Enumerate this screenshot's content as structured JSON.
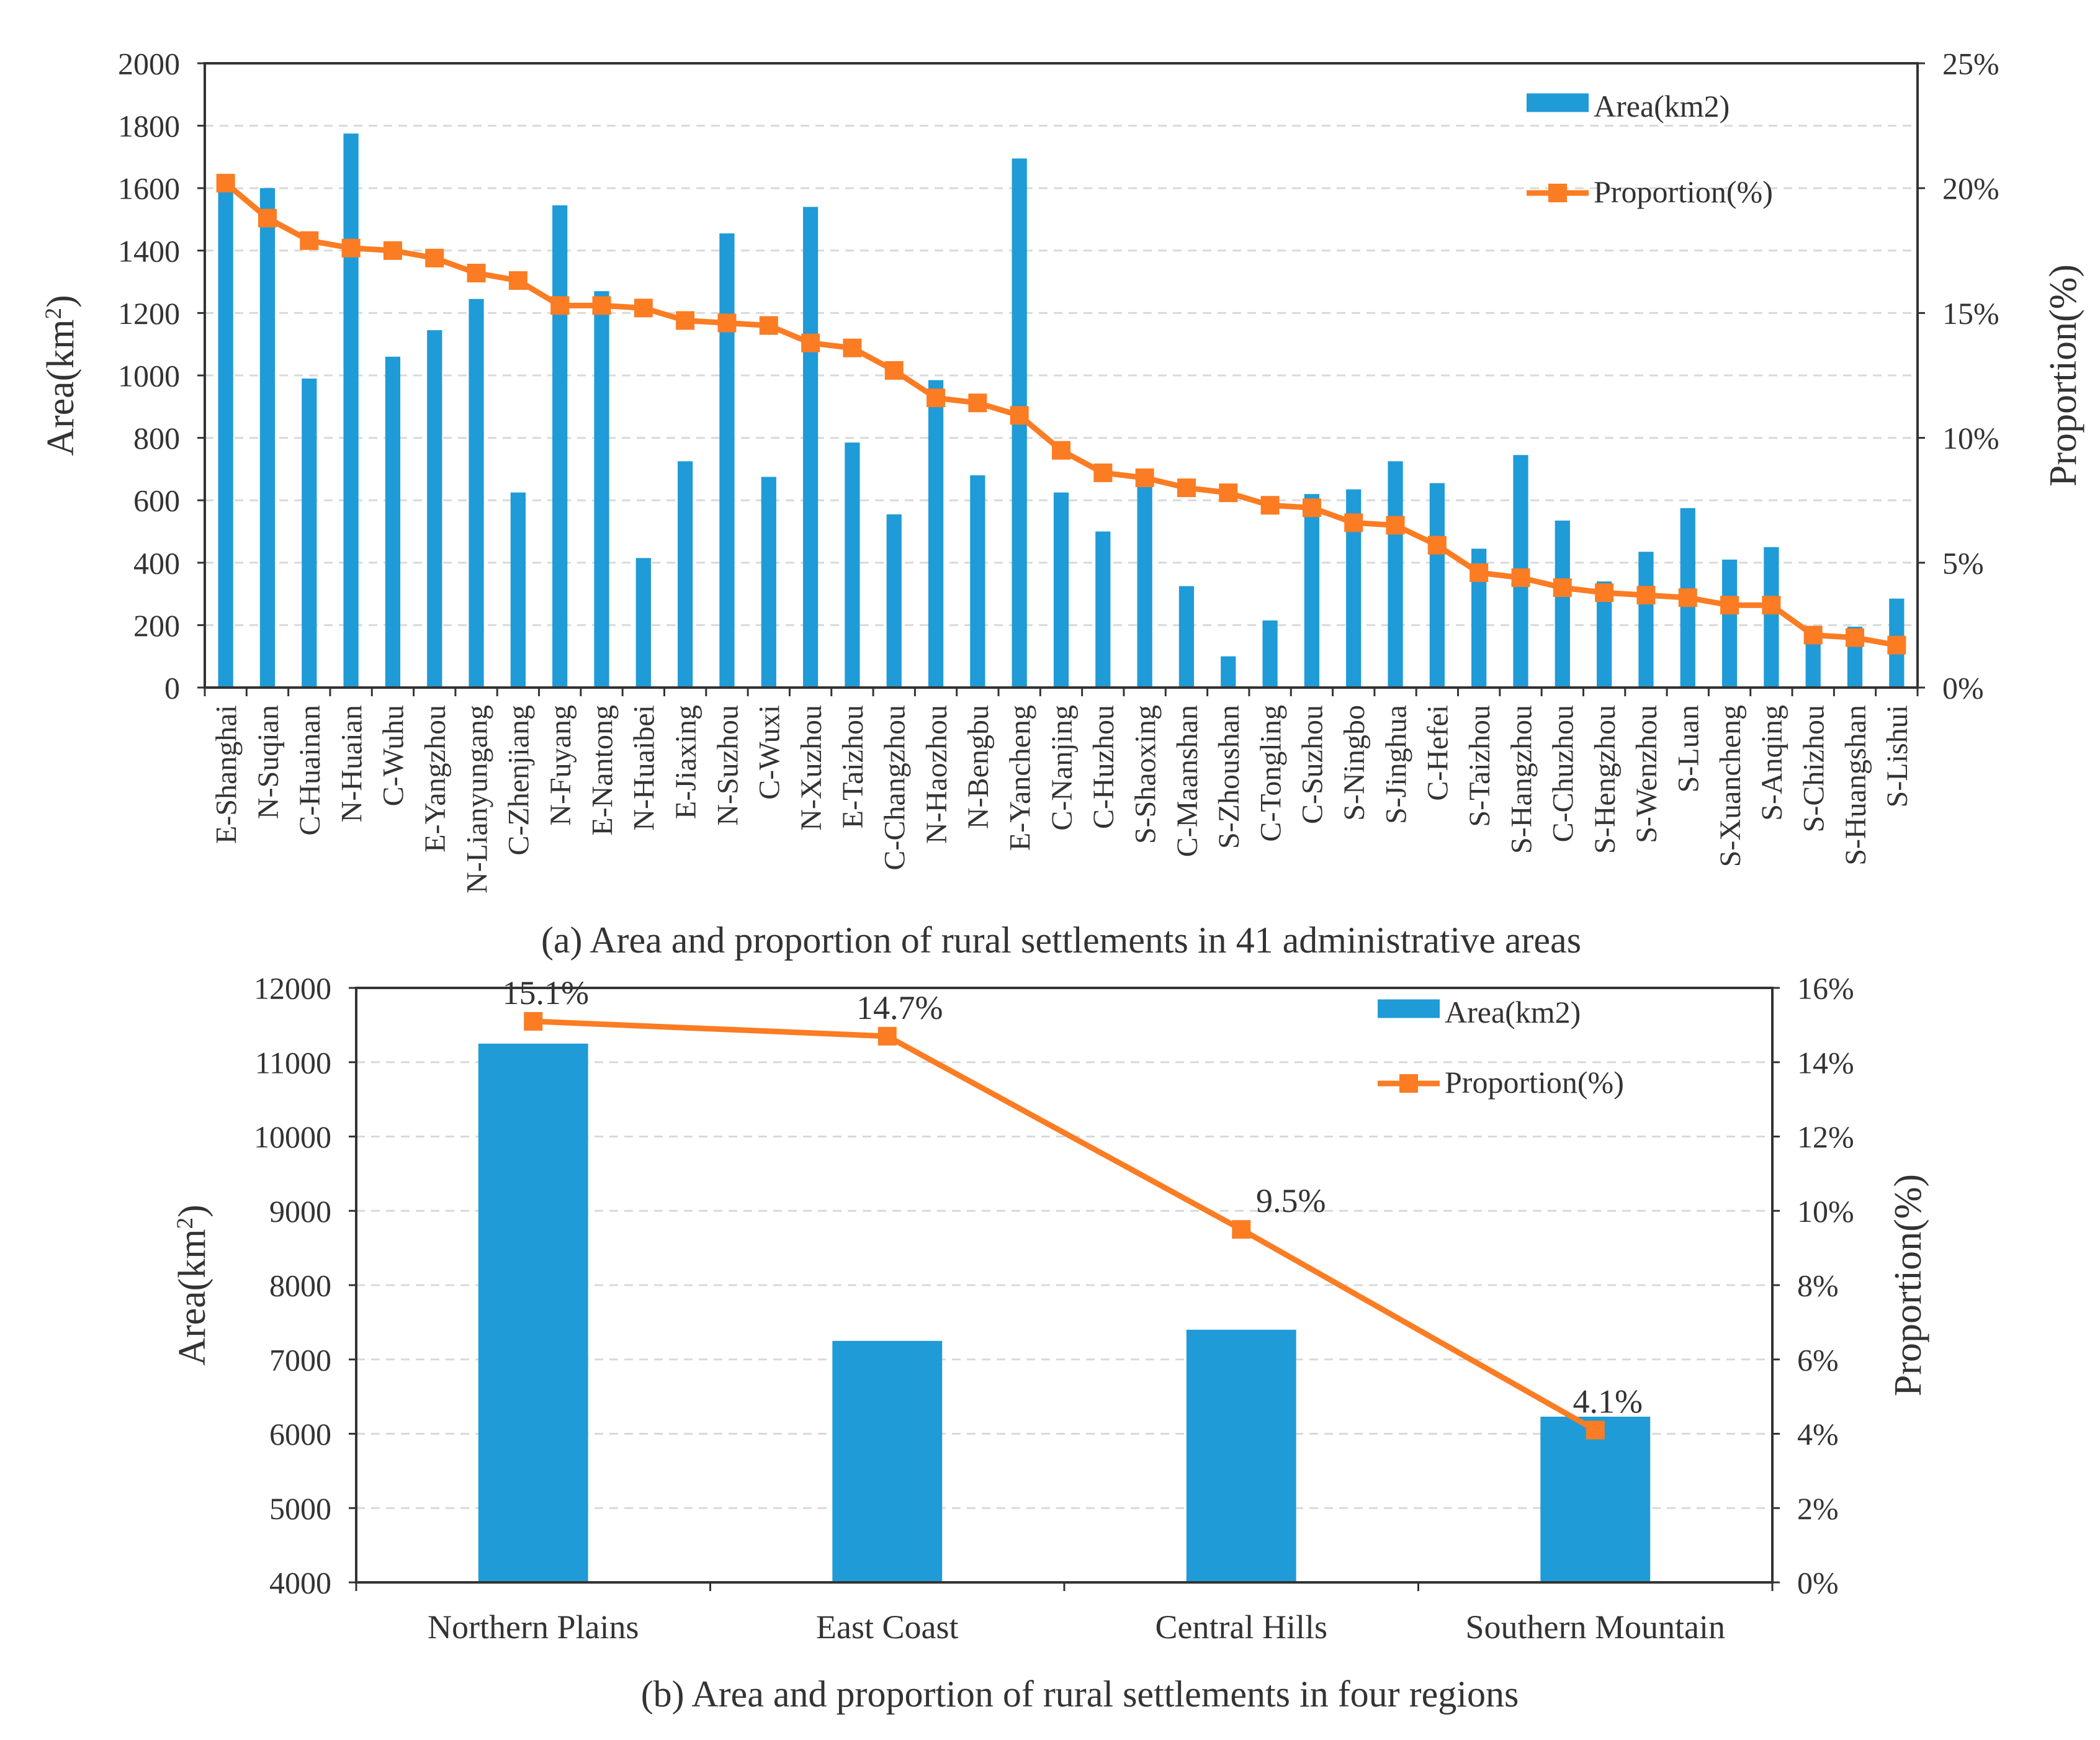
{
  "colors": {
    "bar": "#1f9bd7",
    "line": "#fb7c23",
    "axis": "#333333",
    "grid": "#d9d9d9",
    "text": "#333333"
  },
  "chart_data": [
    {
      "type": "bar+line",
      "caption": "(a) Area and proportion of rural settlements in 41 administrative areas",
      "ylabel_left": "Area(km²)",
      "ylabel_left_main": "Area(km",
      "ylabel_left_sup": "2",
      "ylabel_left_tail": ")",
      "ylabel_right": "Proportion(%)",
      "ylim_left": [
        0,
        2000
      ],
      "ylim_right": [
        0,
        25
      ],
      "yticks_left": [
        "0",
        "200",
        "400",
        "600",
        "800",
        "1000",
        "1200",
        "1400",
        "1600",
        "1800",
        "2000"
      ],
      "yticks_right": [
        "0%",
        "5%",
        "10%",
        "15%",
        "20%",
        "25%"
      ],
      "grid": true,
      "legend": {
        "position": "top-right",
        "bar_label": "Area(km2)",
        "line_label": "Proportion(%)"
      },
      "categories": [
        "E-Shanghai",
        "N-Suqian",
        "C-Huainan",
        "N-Huaian",
        "C-Wuhu",
        "E-Yangzhou",
        "N-Lianyungang",
        "C-Zhenjiang",
        "N-Fuyang",
        "E-Nantong",
        "N-Huaibei",
        "E-Jiaxing",
        "N-Suzhou",
        "C-Wuxi",
        "N-Xuzhou",
        "E-Taizhou",
        "C-Changzhou",
        "N-Haozhou",
        "N-Bengbu",
        "E-Yancheng",
        "C-Nanjing",
        "C-Huzhou",
        "S-Shaoxing",
        "C-Maanshan",
        "S-Zhoushan",
        "C-Tongling",
        "C-Suzhou",
        "S-Ningbo",
        "S-Jinghua",
        "C-Hefei",
        "S-Taizhou",
        "S-Hangzhou",
        "C-Chuzhou",
        "S-Hengzhou",
        "S-Wenzhou",
        "S-Luan",
        "S-Xuancheng",
        "S-Anqing",
        "S-Chizhou",
        "S-Huangshan",
        "S-Lishui"
      ],
      "series": [
        {
          "name": "Area(km2)",
          "type": "bar",
          "axis": "left",
          "values": [
            1620,
            1600,
            990,
            1775,
            1060,
            1145,
            1245,
            625,
            1545,
            1270,
            415,
            725,
            1455,
            675,
            1540,
            785,
            555,
            985,
            680,
            1695,
            625,
            500,
            690,
            325,
            100,
            215,
            620,
            635,
            725,
            655,
            445,
            745,
            535,
            340,
            435,
            575,
            410,
            450,
            180,
            195,
            285
          ]
        },
        {
          "name": "Proportion(%)",
          "type": "line",
          "axis": "right",
          "values": [
            20.2,
            18.8,
            17.9,
            17.6,
            17.5,
            17.2,
            16.6,
            16.3,
            15.3,
            15.3,
            15.2,
            14.7,
            14.6,
            14.5,
            13.8,
            13.6,
            12.7,
            11.6,
            11.4,
            10.9,
            9.5,
            8.6,
            8.4,
            8.0,
            7.8,
            7.3,
            7.2,
            6.6,
            6.5,
            5.7,
            4.6,
            4.4,
            4.0,
            3.8,
            3.7,
            3.6,
            3.3,
            3.3,
            2.1,
            2.0,
            1.7
          ]
        }
      ]
    },
    {
      "type": "bar+line",
      "caption": "(b) Area and proportion of rural settlements in four regions",
      "ylabel_left": "Area(km²)",
      "ylabel_left_main": "Area(km",
      "ylabel_left_sup": "2",
      "ylabel_left_tail": ")",
      "ylabel_right": "Proportion(%)",
      "ylim_left": [
        4000,
        12000
      ],
      "ylim_right": [
        0,
        16
      ],
      "yticks_left": [
        "4000",
        "5000",
        "6000",
        "7000",
        "8000",
        "9000",
        "10000",
        "11000",
        "12000"
      ],
      "yticks_right": [
        "0%",
        "2%",
        "4%",
        "6%",
        "8%",
        "10%",
        "12%",
        "14%",
        "16%"
      ],
      "grid": true,
      "legend": {
        "position": "top-right",
        "bar_label": "Area(km2)",
        "line_label": "Proportion(%)"
      },
      "categories": [
        "Northern Plains",
        "East Coast",
        "Central Hills",
        "Southern Mountain"
      ],
      "series": [
        {
          "name": "Area(km2)",
          "type": "bar",
          "axis": "left",
          "values": [
            11250,
            7250,
            7400,
            6230
          ]
        },
        {
          "name": "Proportion(%)",
          "type": "line",
          "axis": "right",
          "values": [
            15.1,
            14.7,
            9.5,
            4.1
          ]
        }
      ],
      "data_labels": [
        "15.1%",
        "14.7%",
        "9.5%",
        "4.1%"
      ]
    }
  ]
}
